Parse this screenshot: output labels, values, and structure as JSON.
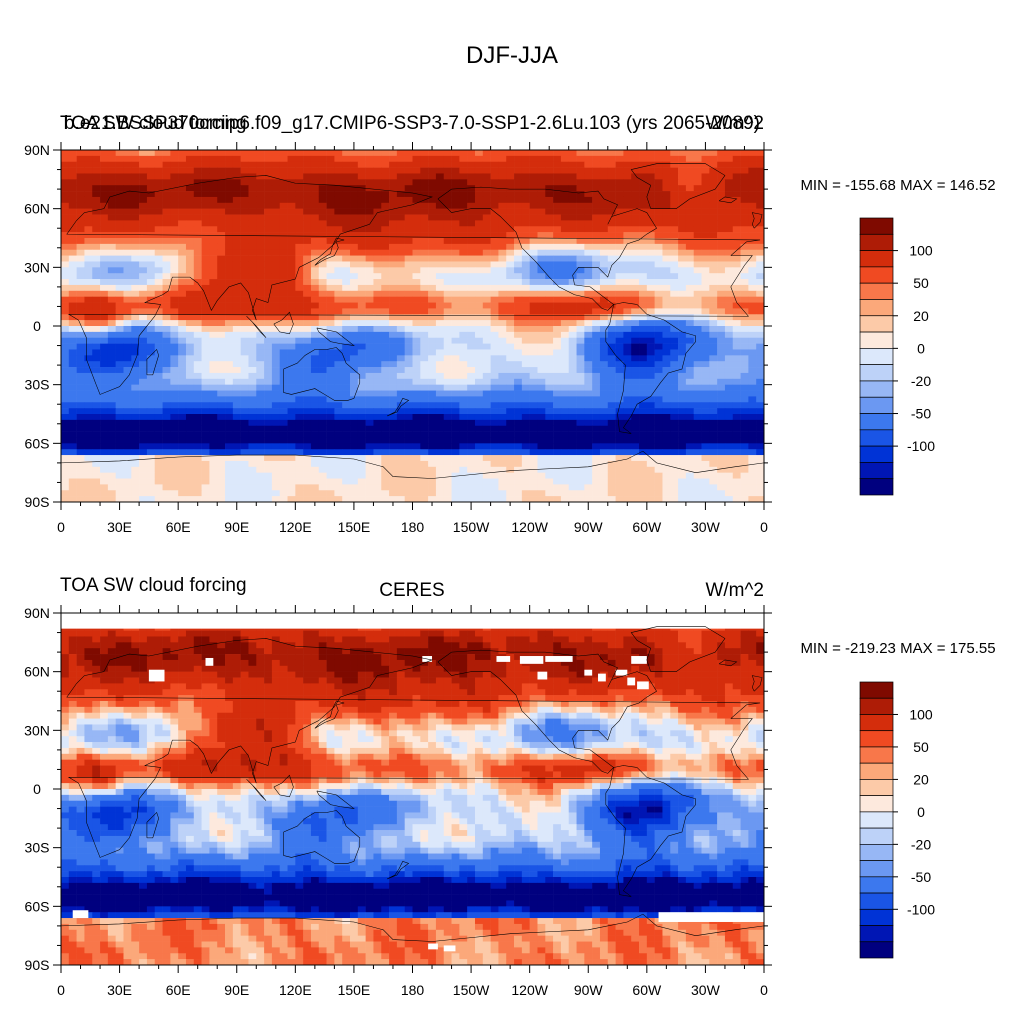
{
  "figure": {
    "title": "DJF-JJA"
  },
  "colors": {
    "palette": [
      "#00007f",
      "#0016b4",
      "#0033d6",
      "#1a55e6",
      "#3c78ee",
      "#6b98f2",
      "#97b7f5",
      "#bdd2f8",
      "#dce8fb",
      "#fde9dd",
      "#fccaa8",
      "#fba87a",
      "#f8774a",
      "#f04a22",
      "#d42d0c",
      "#ae1c06",
      "#7f0a00"
    ],
    "land": "none",
    "missing": "#ffffff",
    "coast": "#000000"
  },
  "chart_data": [
    {
      "type": "heatmap",
      "id": "model",
      "title_left": "TOA SW cloud forcing",
      "title_center": "b.e21.BSSP370cmip6.f09_g17.CMIP6-SSP3-7.0-SSP1-2.6Lu.103 (yrs 2065-2089)",
      "title_right": "W/m^2",
      "min_max": "MIN = -155.68 MAX = 146.52",
      "x_ticks": [
        "0",
        "30E",
        "60E",
        "90E",
        "120E",
        "150E",
        "180",
        "150W",
        "120W",
        "90W",
        "60W",
        "30W",
        "0"
      ],
      "y_ticks": [
        "90N",
        "60N",
        "30N",
        "0",
        "30S",
        "60S",
        "90S"
      ],
      "levels": [
        -130,
        -120,
        -100,
        -80,
        -50,
        -40,
        -30,
        -20,
        -10,
        0,
        10,
        20,
        30,
        50,
        80,
        100,
        120
      ],
      "colorbar_labels": [
        "100",
        "50",
        "20",
        "0",
        "-20",
        "-50",
        "-100"
      ],
      "xlim": [
        0,
        360
      ],
      "ylim": [
        -90,
        90
      ],
      "missing_boxes": []
    },
    {
      "type": "heatmap",
      "id": "obs",
      "title_left": "TOA SW cloud forcing",
      "title_center": "CERES",
      "title_right": "W/m^2",
      "min_max": "MIN = -219.23 MAX = 175.55",
      "x_ticks": [
        "0",
        "30E",
        "60E",
        "90E",
        "120E",
        "150E",
        "180",
        "150W",
        "120W",
        "90W",
        "60W",
        "30W",
        "0"
      ],
      "y_ticks": [
        "90N",
        "60N",
        "30N",
        "0",
        "30S",
        "60S",
        "90S"
      ],
      "levels": [
        -130,
        -120,
        -100,
        -80,
        -50,
        -40,
        -30,
        -20,
        -10,
        0,
        10,
        20,
        30,
        50,
        80,
        100,
        120
      ],
      "colorbar_labels": [
        "100",
        "50",
        "20",
        "0",
        "-20",
        "-50",
        "-100"
      ],
      "xlim": [
        0,
        360
      ],
      "ylim": [
        -90,
        90
      ],
      "missing_boxes": [
        [
          74,
          67,
          78,
          63
        ],
        [
          45,
          61,
          53,
          55
        ],
        [
          185,
          68,
          190,
          65
        ],
        [
          223,
          68,
          230,
          65
        ],
        [
          235,
          68,
          247,
          64
        ],
        [
          248,
          68,
          262,
          65
        ],
        [
          244,
          60,
          249,
          56
        ],
        [
          268,
          61,
          272,
          58
        ],
        [
          275,
          59,
          279,
          55
        ],
        [
          284,
          61,
          290,
          58
        ],
        [
          292,
          68,
          300,
          64
        ],
        [
          290,
          57,
          294,
          53
        ],
        [
          295,
          55,
          301,
          51
        ],
        [
          6,
          -62,
          14,
          -66
        ],
        [
          306,
          -63,
          370,
          -68
        ],
        [
          188,
          -79,
          193,
          -82
        ],
        [
          196,
          -80,
          202,
          -83
        ]
      ]
    }
  ]
}
